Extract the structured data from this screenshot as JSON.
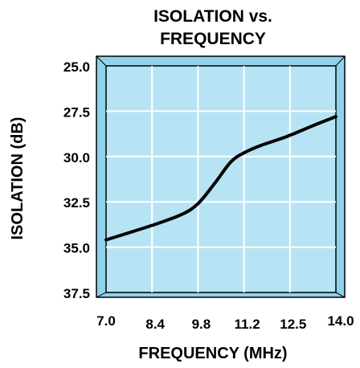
{
  "chart_data": {
    "type": "line",
    "title_lines": [
      "ISOLATION vs.",
      "FREQUENCY"
    ],
    "xlabel": "FREQUENCY (MHz)",
    "ylabel": "ISOLATION (dB)",
    "x_ticks": [
      "7.0",
      "8.4",
      "9.8",
      "11.2",
      "12.5",
      "14.0"
    ],
    "y_ticks": [
      "25.0",
      "27.5",
      "30.0",
      "32.5",
      "35.0",
      "37.5"
    ],
    "xlim": [
      7.0,
      14.0
    ],
    "ylim": [
      25.0,
      37.5
    ],
    "y_inverted": true,
    "grid": true,
    "series": [
      {
        "x": [
          7.0,
          8.4,
          9.3,
          9.8,
          10.3,
          10.8,
          11.2,
          11.7,
          12.5,
          13.3,
          14.0
        ],
        "values": [
          34.6,
          33.8,
          33.2,
          32.6,
          31.5,
          30.3,
          29.8,
          29.4,
          28.9,
          28.3,
          27.8
        ]
      }
    ],
    "colors": {
      "plot_fill": "#b6e4f4",
      "frame_fill": "#8fd2ec",
      "grid": "#ffffff",
      "line": "#000000"
    }
  }
}
